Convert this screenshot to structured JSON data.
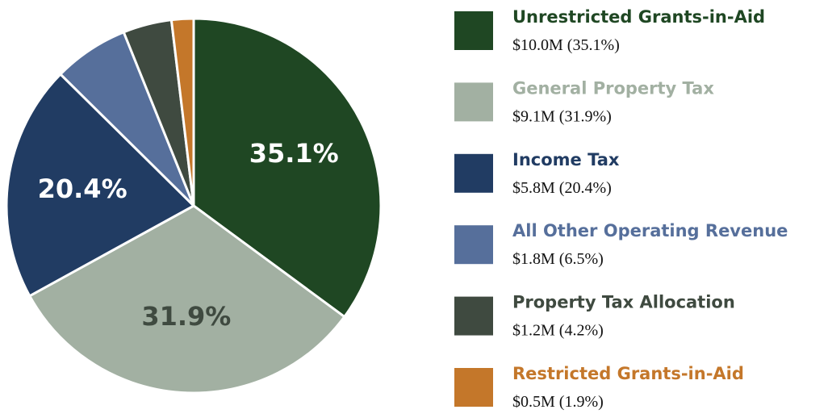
{
  "chart_data": {
    "type": "pie",
    "categories": [
      "Unrestricted Grants-in-Aid",
      "General Property Tax",
      "Income Tax",
      "All Other Operating Revenue",
      "Property Tax Allocation",
      "Restricted Grants-in-Aid"
    ],
    "values": [
      35.1,
      31.9,
      20.4,
      6.5,
      4.2,
      1.9
    ],
    "value_labels": [
      "35.1%",
      "31.9%",
      "20.4%",
      null,
      null,
      null
    ],
    "legend_details": [
      "$10.0M (35.1%)",
      "$9.1M (31.9%)",
      "$5.8M (20.4%)",
      "$1.8M (6.5%)",
      "$1.2M (4.2%)",
      "$0.5M (1.9%)"
    ],
    "colors": [
      "#1f4723",
      "#a2b0a2",
      "#213c63",
      "#566f9b",
      "#3f4a40",
      "#c4772a"
    ],
    "label_colors": [
      "#ffffff",
      "#3f4a40",
      "#ffffff",
      null,
      null,
      null
    ],
    "legend_position": "right"
  }
}
